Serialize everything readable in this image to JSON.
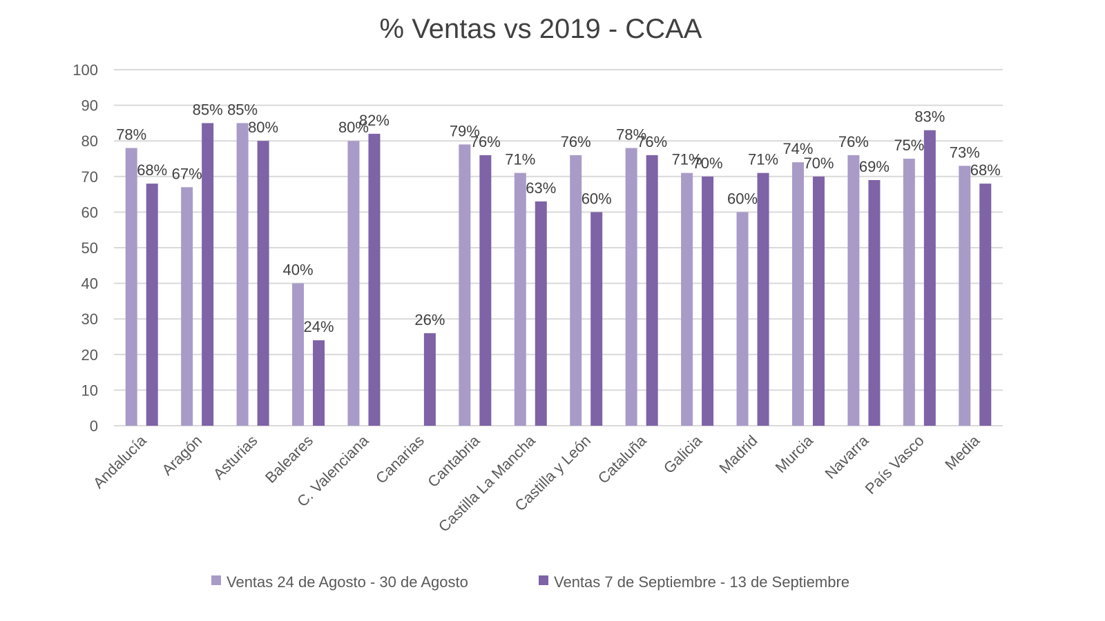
{
  "chart_data": {
    "type": "bar",
    "title": "% Ventas vs 2019 - CCAA",
    "xlabel": "",
    "ylabel": "",
    "ylim": [
      0,
      100
    ],
    "yticks": [
      0,
      10,
      20,
      30,
      40,
      50,
      60,
      70,
      80,
      90,
      100
    ],
    "grid": true,
    "legend_position": "bottom",
    "categories": [
      "Andalucía",
      "Aragón",
      "Asturias",
      "Baleares",
      "C. Valenciana",
      "Canarias",
      "Cantabria",
      "Castilla La Mancha",
      "Castilla y León",
      "Cataluña",
      "Galicia",
      "Madrid",
      "Murcia",
      "Navarra",
      "País Vasco",
      "Media"
    ],
    "series": [
      {
        "name": "Ventas 24 de Agosto - 30 de Agosto",
        "color": "#a99bc8",
        "values": [
          78,
          67,
          85,
          40,
          80,
          null,
          79,
          71,
          76,
          78,
          71,
          60,
          74,
          76,
          75,
          73
        ],
        "labels": [
          "78%",
          "67%",
          "85%",
          "40%",
          "80%",
          null,
          "79%",
          "71%",
          "76%",
          "78%",
          "71%",
          "60%",
          "74%",
          "76%",
          "75%",
          "73%"
        ]
      },
      {
        "name": "Ventas 7 de Septiembre - 13 de Septiembre",
        "color": "#7e63a6",
        "values": [
          68,
          85,
          80,
          24,
          82,
          26,
          76,
          63,
          60,
          76,
          70,
          71,
          70,
          69,
          83,
          68
        ],
        "labels": [
          "68%",
          "85%",
          "80%",
          "24%",
          "82%",
          "26%",
          "76%",
          "63%",
          "60%",
          "76%",
          "70%",
          "71%",
          "70%",
          "69%",
          "83%",
          "68%"
        ]
      }
    ]
  }
}
